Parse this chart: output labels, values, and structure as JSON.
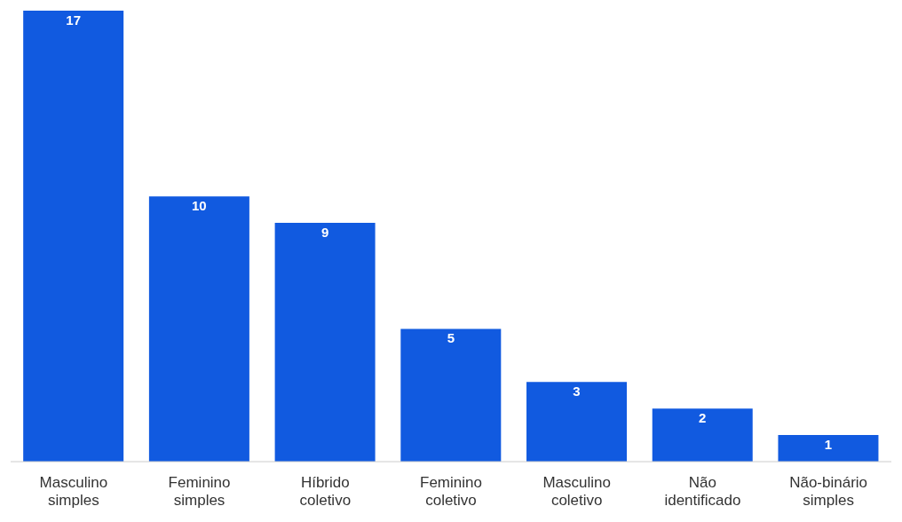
{
  "chart_data": {
    "type": "bar",
    "categories": [
      "Masculino simples",
      "Feminino simples",
      "Híbrido coletivo",
      "Feminino coletivo",
      "Masculino coletivo",
      "Não identificado",
      "Não-binário simples"
    ],
    "values": [
      17,
      10,
      9,
      5,
      3,
      2,
      1
    ],
    "color": "#115ae0",
    "data_labels": true
  }
}
